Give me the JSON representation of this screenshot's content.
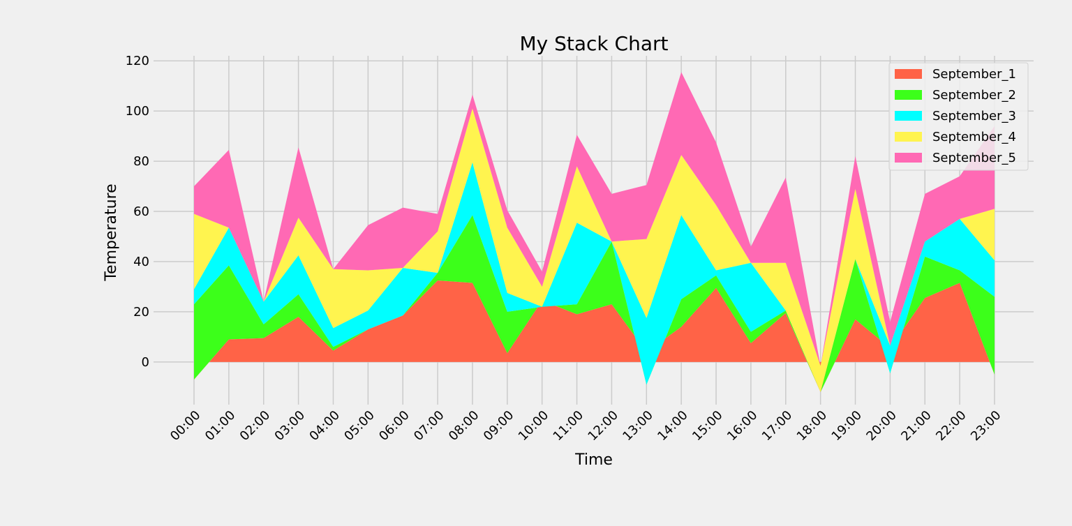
{
  "chart_data": {
    "type": "area",
    "stacked": true,
    "title": "My Stack Chart",
    "xlabel": "Time",
    "ylabel": "Temperature",
    "ylim": [
      -17,
      122
    ],
    "yticks": [
      0,
      20,
      40,
      60,
      80,
      100,
      120
    ],
    "grid": true,
    "legend_position": "top-right",
    "categories": [
      "00:00",
      "01:00",
      "02:00",
      "03:00",
      "04:00",
      "05:00",
      "06:00",
      "07:00",
      "08:00",
      "09:00",
      "10:00",
      "11:00",
      "12:00",
      "13:00",
      "14:00",
      "15:00",
      "16:00",
      "17:00",
      "18:00",
      "19:00",
      "20:00",
      "21:00",
      "22:00",
      "23:00"
    ],
    "series": [
      {
        "name": "September_1",
        "color": "#ff6347",
        "values": [
          -7,
          9,
          9.5,
          18,
          4.5,
          13,
          18.5,
          32.5,
          31.5,
          3.5,
          24.5,
          19,
          23,
          4,
          14,
          29.5,
          7.5,
          19.5,
          -12,
          17,
          5.5,
          25.5,
          31.5,
          -5
        ]
      },
      {
        "name": "September_2",
        "color": "#3cff1a",
        "values": [
          30,
          29.5,
          5.5,
          9,
          1.5,
          0,
          0,
          3,
          27,
          16.5,
          -2.5,
          4,
          25,
          -13,
          11,
          5,
          4.5,
          1,
          0,
          24,
          -10,
          16.5,
          5,
          31
        ]
      },
      {
        "name": "September_3",
        "color": "#00ffff",
        "values": [
          6,
          15,
          9,
          15.5,
          7.5,
          7.5,
          19,
          0,
          21,
          7.5,
          0,
          32.5,
          0,
          26.5,
          33.5,
          2,
          27.5,
          0,
          0,
          0,
          11,
          6,
          20.5,
          14.5
        ]
      },
      {
        "name": "September_4",
        "color": "#fff44f",
        "values": [
          30,
          0,
          0,
          15,
          23.5,
          16,
          0,
          16.5,
          21.5,
          26,
          8,
          22.5,
          0,
          31.5,
          24,
          26,
          0,
          19,
          10.5,
          28,
          0,
          0,
          0,
          20.5
        ]
      },
      {
        "name": "September_5",
        "color": "#ff69b4",
        "values": [
          11,
          31,
          0,
          28,
          0,
          18,
          24,
          7,
          5.5,
          7,
          6,
          12.5,
          19,
          21.5,
          33,
          25,
          6.5,
          34,
          0,
          13,
          9.5,
          19,
          17,
          33
        ]
      }
    ]
  }
}
